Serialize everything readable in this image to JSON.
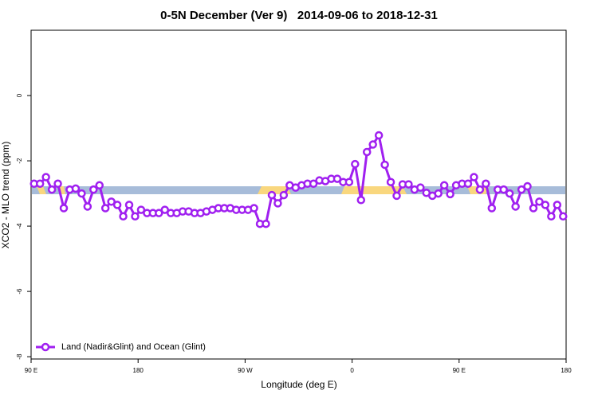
{
  "chart_data": {
    "type": "line",
    "title": "0-5N December (Ver 9)   2014-09-06 to 2018-12-31",
    "x_label": "Longitude (deg E)",
    "y_label": "XCO2 - MLO trend (ppm)",
    "x": [
      92.5,
      97.5,
      102.5,
      107.5,
      112.5,
      117.5,
      122.5,
      127.5,
      132.5,
      137.5,
      142.5,
      147.5,
      152.5,
      157.5,
      162.5,
      167.5,
      172.5,
      177.5,
      182.5,
      187.5,
      192.5,
      197.5,
      202.5,
      207.5,
      212.5,
      217.5,
      222.5,
      227.5,
      232.5,
      237.5,
      242.5,
      247.5,
      252.5,
      257.5,
      262.5,
      267.5,
      272.5,
      277.5,
      282.5,
      287.5,
      292.5,
      297.5,
      302.5,
      307.5,
      312.5,
      317.5,
      322.5,
      327.5,
      332.5,
      337.5,
      342.5,
      347.5,
      352.5,
      357.5,
      362.5,
      367.5,
      372.5,
      377.5,
      382.5,
      387.5,
      392.5,
      397.5,
      402.5,
      407.5,
      412.5,
      417.5,
      422.5,
      427.5,
      432.5,
      437.5,
      442.5,
      447.5,
      452.5,
      457.5,
      462.5,
      467.5,
      472.5,
      477.5,
      482.5,
      487.5,
      492.5,
      497.5,
      502.5,
      507.5,
      512.5,
      517.5,
      522.5,
      527.5,
      532.5,
      537.5
    ],
    "series": [
      {
        "name": "Land (Nadir&Glint) and Ocean (Glint)",
        "color": "#a020f0",
        "values": [
          -2.7,
          -2.7,
          -2.5,
          -2.88,
          -2.7,
          -3.45,
          -2.88,
          -2.85,
          -3.0,
          -3.4,
          -2.88,
          -2.75,
          -3.45,
          -3.25,
          -3.35,
          -3.7,
          -3.35,
          -3.7,
          -3.5,
          -3.6,
          -3.6,
          -3.6,
          -3.5,
          -3.6,
          -3.6,
          -3.55,
          -3.55,
          -3.6,
          -3.6,
          -3.55,
          -3.5,
          -3.45,
          -3.45,
          -3.45,
          -3.5,
          -3.5,
          -3.5,
          -3.45,
          -3.93,
          -3.93,
          -3.05,
          -3.3,
          -3.05,
          -2.75,
          -2.82,
          -2.75,
          -2.7,
          -2.7,
          -2.6,
          -2.62,
          -2.55,
          -2.55,
          -2.65,
          -2.65,
          -2.1,
          -3.2,
          -1.73,
          -1.5,
          -1.22,
          -2.12,
          -2.65,
          -3.07,
          -2.72,
          -2.72,
          -2.88,
          -2.82,
          -2.98,
          -3.07,
          -3.0,
          -2.75,
          -3.02,
          -2.75,
          -2.7,
          -2.7,
          -2.5,
          -2.88,
          -2.7,
          -3.45,
          -2.88,
          -2.88,
          -3.0,
          -3.4,
          -2.88,
          -2.78,
          -3.45,
          -3.25,
          -3.35,
          -3.7,
          -3.35,
          -3.7
        ]
      }
    ],
    "xlim": [
      90,
      540
    ],
    "xticks": [
      {
        "value": 90,
        "label": "90 E"
      },
      180,
      {
        "value": 270,
        "label": "90 W"
      },
      {
        "value": 360,
        "label": "0"
      },
      {
        "value": 450,
        "label": "90 E"
      },
      {
        "value": 540,
        "label": "180"
      }
    ],
    "ylim": [
      -8.07,
      2.0
    ],
    "yticks": [
      0,
      -2,
      -4,
      -6,
      -8
    ],
    "legend": "bottom-left"
  }
}
